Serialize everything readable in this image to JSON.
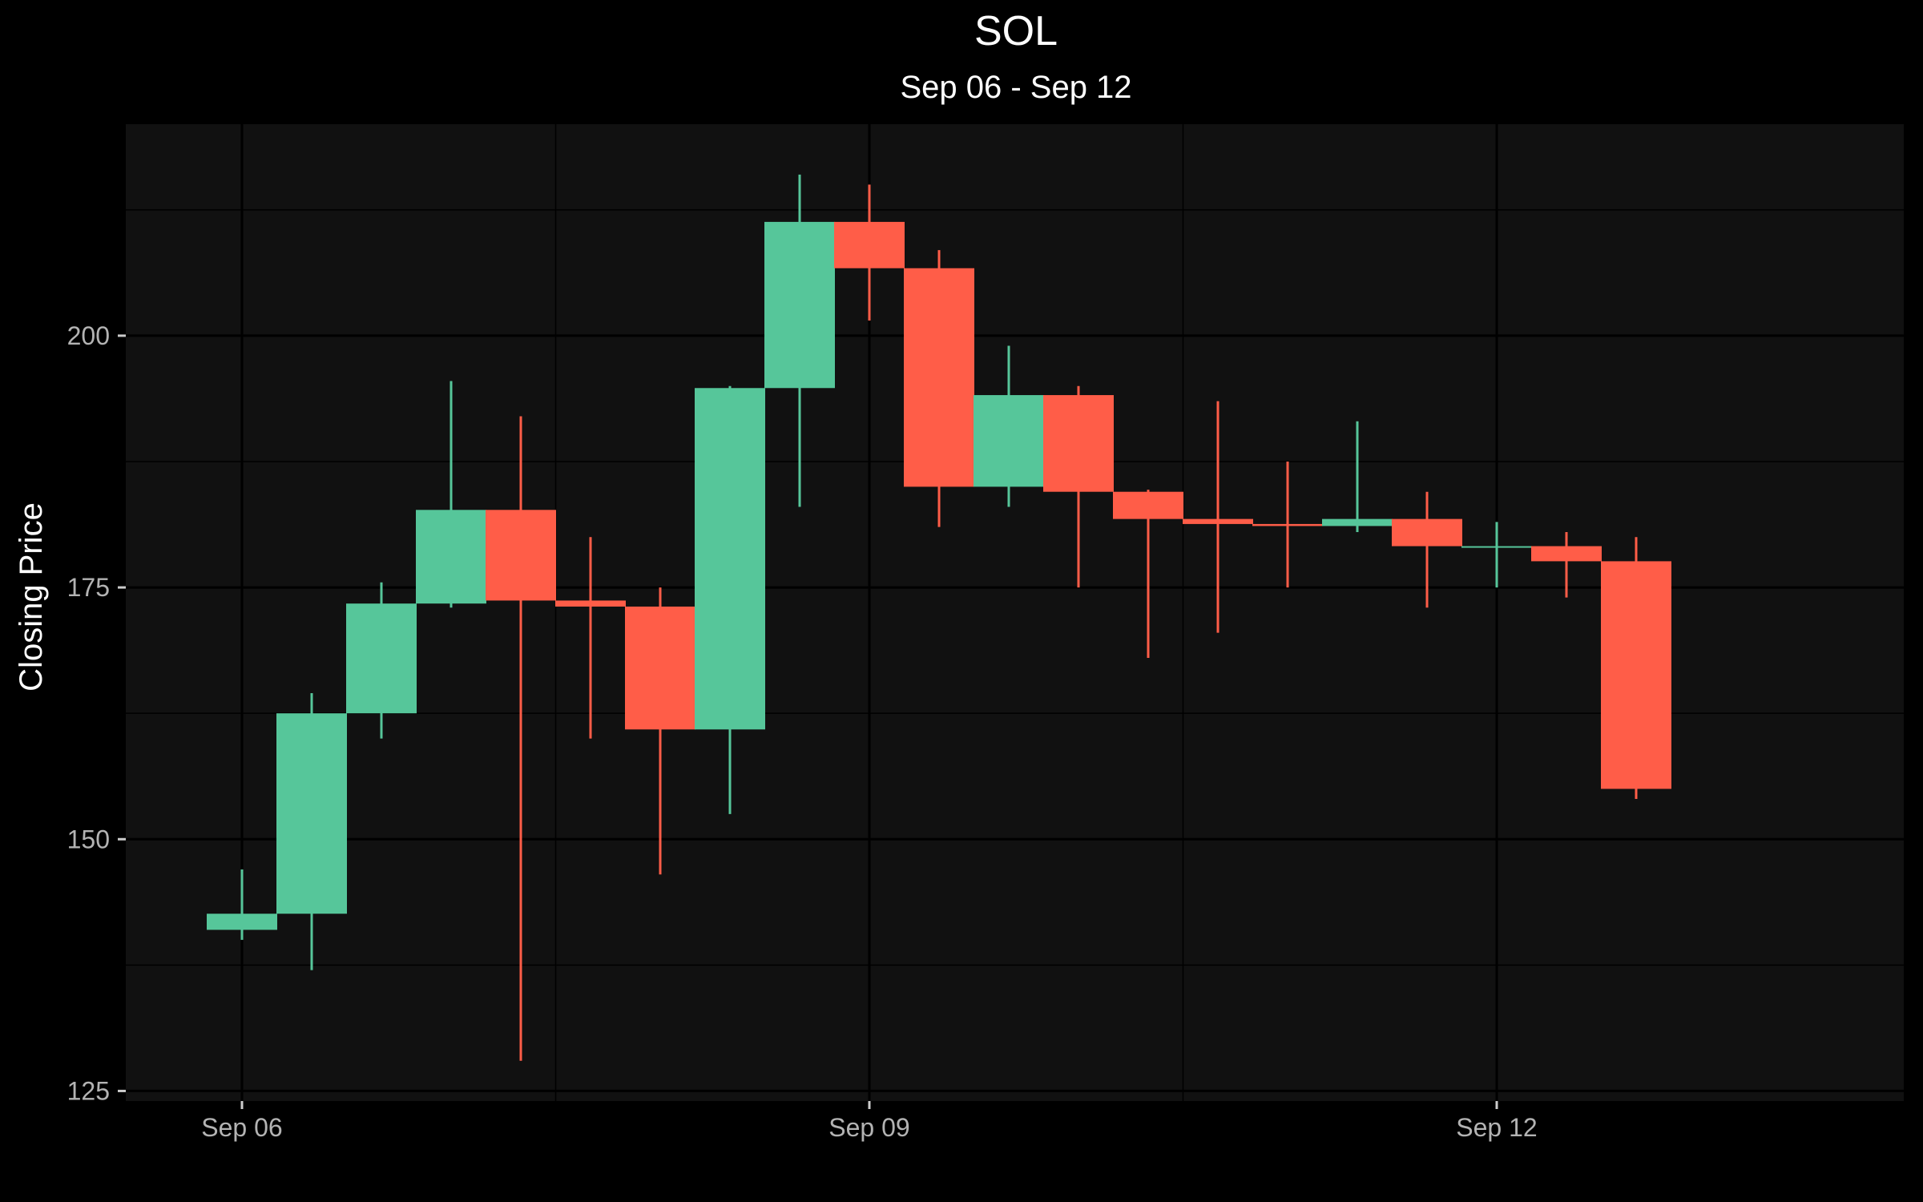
{
  "chart_data": {
    "type": "candlestick",
    "title": "SOL",
    "subtitle": "Sep 06 - Sep 12",
    "ylabel": "Closing Price",
    "xlabel": "",
    "ylim": [
      124,
      221
    ],
    "yticks": [
      125,
      150,
      175,
      200
    ],
    "xticks": [
      {
        "label": "Sep 06",
        "index": 0
      },
      {
        "label": "Sep 09",
        "index": 9
      },
      {
        "label": "Sep 12",
        "index": 18
      }
    ],
    "grid": true,
    "colors": {
      "up": "#56c69a",
      "down": "#ff5d48",
      "panel": "#111111",
      "grid": "#000000",
      "background": "#000000"
    },
    "candles": [
      {
        "open": 141.0,
        "high": 147.0,
        "low": 140.0,
        "close": 142.6
      },
      {
        "open": 142.6,
        "high": 164.5,
        "low": 137.0,
        "close": 162.5
      },
      {
        "open": 162.5,
        "high": 175.5,
        "low": 160.0,
        "close": 173.4
      },
      {
        "open": 173.4,
        "high": 195.5,
        "low": 173.0,
        "close": 182.7
      },
      {
        "open": 182.7,
        "high": 192.0,
        "low": 128.0,
        "close": 173.7
      },
      {
        "open": 173.7,
        "high": 180.0,
        "low": 160.0,
        "close": 173.1
      },
      {
        "open": 173.1,
        "high": 175.0,
        "low": 146.5,
        "close": 160.9
      },
      {
        "open": 160.9,
        "high": 195.0,
        "low": 152.5,
        "close": 194.8
      },
      {
        "open": 194.8,
        "high": 216.0,
        "low": 183.0,
        "close": 211.3
      },
      {
        "open": 211.3,
        "high": 215.0,
        "low": 201.5,
        "close": 206.7
      },
      {
        "open": 206.7,
        "high": 208.5,
        "low": 181.0,
        "close": 185.0
      },
      {
        "open": 185.0,
        "high": 199.0,
        "low": 183.0,
        "close": 194.1
      },
      {
        "open": 194.1,
        "high": 195.0,
        "low": 175.0,
        "close": 184.5
      },
      {
        "open": 184.5,
        "high": 184.7,
        "low": 168.0,
        "close": 181.8
      },
      {
        "open": 181.8,
        "high": 193.5,
        "low": 170.5,
        "close": 181.3
      },
      {
        "open": 181.3,
        "high": 187.5,
        "low": 175.0,
        "close": 181.1
      },
      {
        "open": 181.1,
        "high": 191.5,
        "low": 180.5,
        "close": 181.8
      },
      {
        "open": 181.8,
        "high": 184.5,
        "low": 173.0,
        "close": 179.1
      },
      {
        "open": 179.1,
        "high": 181.5,
        "low": 175.0,
        "close": 179.1
      },
      {
        "open": 179.1,
        "high": 180.5,
        "low": 174.0,
        "close": 177.6
      },
      {
        "open": 177.6,
        "high": 180.0,
        "low": 154.0,
        "close": 155.0
      }
    ]
  }
}
